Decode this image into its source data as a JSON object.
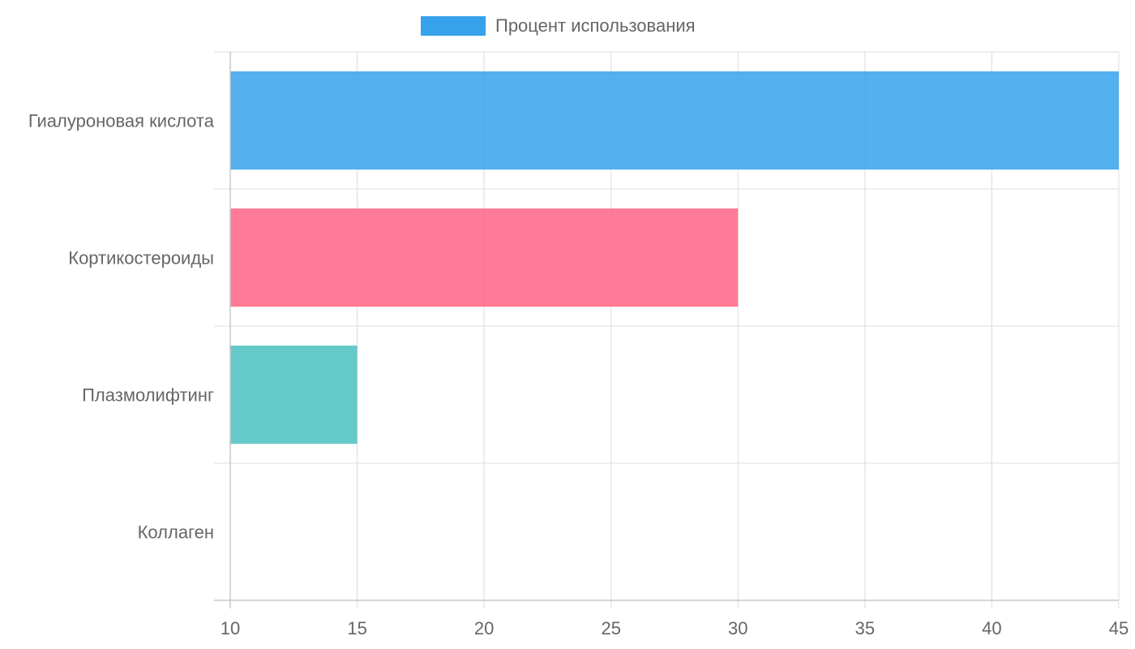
{
  "chart_data": {
    "type": "bar",
    "orientation": "horizontal",
    "categories": [
      "Гиалуроновая кислота",
      "Кортикостероиды",
      "Плазмолифтинг",
      "Коллаген"
    ],
    "series": [
      {
        "name": "Процент использования",
        "values": [
          45,
          30,
          15,
          10
        ],
        "colors": [
          "#36a2eb",
          "#ff6384",
          "#4bc0c0",
          "#ff9f40"
        ]
      }
    ],
    "x_ticks": [
      "10",
      "15",
      "20",
      "25",
      "30",
      "35",
      "40",
      "45"
    ],
    "xlim": [
      10,
      45
    ],
    "grid": true,
    "legend_position": "top-center",
    "legend_color": "#36a2eb"
  }
}
